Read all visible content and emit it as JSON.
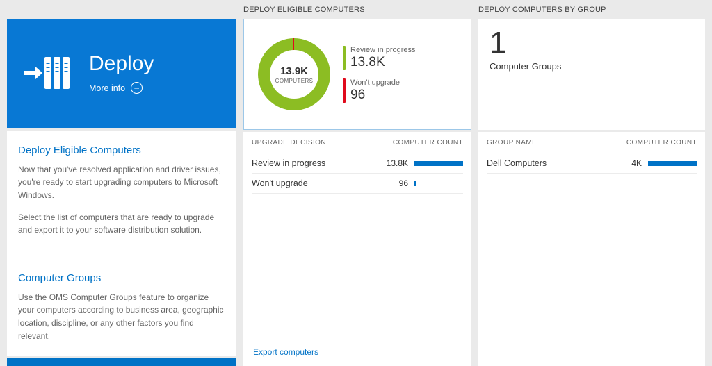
{
  "colors": {
    "page_bg": "#eaeaea",
    "tile_blue": "#0878d4",
    "accent_blue": "#0072c6",
    "bar_blue": "#0072c6",
    "donut_green": "#8cbd23",
    "status_red": "#e00b1c"
  },
  "left_panel": {
    "tile": {
      "title": "Deploy",
      "more_info_label": "More info"
    },
    "sections": [
      {
        "heading": "Deploy Eligible Computers",
        "paragraphs": [
          "Now that you've resolved application and driver issues, you're ready to start upgrading computers to Microsoft Windows.",
          "Select the list of computers that are ready to upgrade and export it to your software distribution solution."
        ]
      },
      {
        "heading": "Computer Groups",
        "paragraphs": [
          "Use the OMS Computer Groups feature to organize your computers according to business area, geographic location, discipline, or any other factors you find relevant."
        ]
      }
    ]
  },
  "middle_panel": {
    "header": "DEPLOY ELIGIBLE COMPUTERS",
    "donut": {
      "center_value": "13.9K",
      "center_label": "COMPUTERS"
    },
    "legend": [
      {
        "label": "Review in progress",
        "value": "13.8K"
      },
      {
        "label": "Won't upgrade",
        "value": "96"
      }
    ],
    "table": {
      "columns": [
        "UPGRADE DECISION",
        "COMPUTER COUNT"
      ],
      "rows": [
        {
          "label": "Review in progress",
          "value": "13.8K",
          "bar_pct": 100
        },
        {
          "label": "Won't upgrade",
          "value": "96",
          "bar_pct": 2
        }
      ]
    },
    "footer_link": "Export computers"
  },
  "right_panel": {
    "header": "DEPLOY COMPUTERS BY GROUP",
    "tile": {
      "count": "1",
      "label": "Computer Groups"
    },
    "table": {
      "columns": [
        "GROUP NAME",
        "COMPUTER COUNT"
      ],
      "rows": [
        {
          "label": "Dell Computers",
          "value": "4K",
          "bar_pct": 100
        }
      ]
    }
  },
  "chart_data": {
    "type": "pie",
    "title": "Deploy Eligible Computers",
    "labels": [
      "Review in progress",
      "Won't upgrade"
    ],
    "values": [
      13800,
      96
    ],
    "display_values": [
      "13.8K",
      "96"
    ],
    "colors": [
      "#8cbd23",
      "#e00b1c"
    ],
    "center_value": "13.9K",
    "center_label": "COMPUTERS"
  }
}
